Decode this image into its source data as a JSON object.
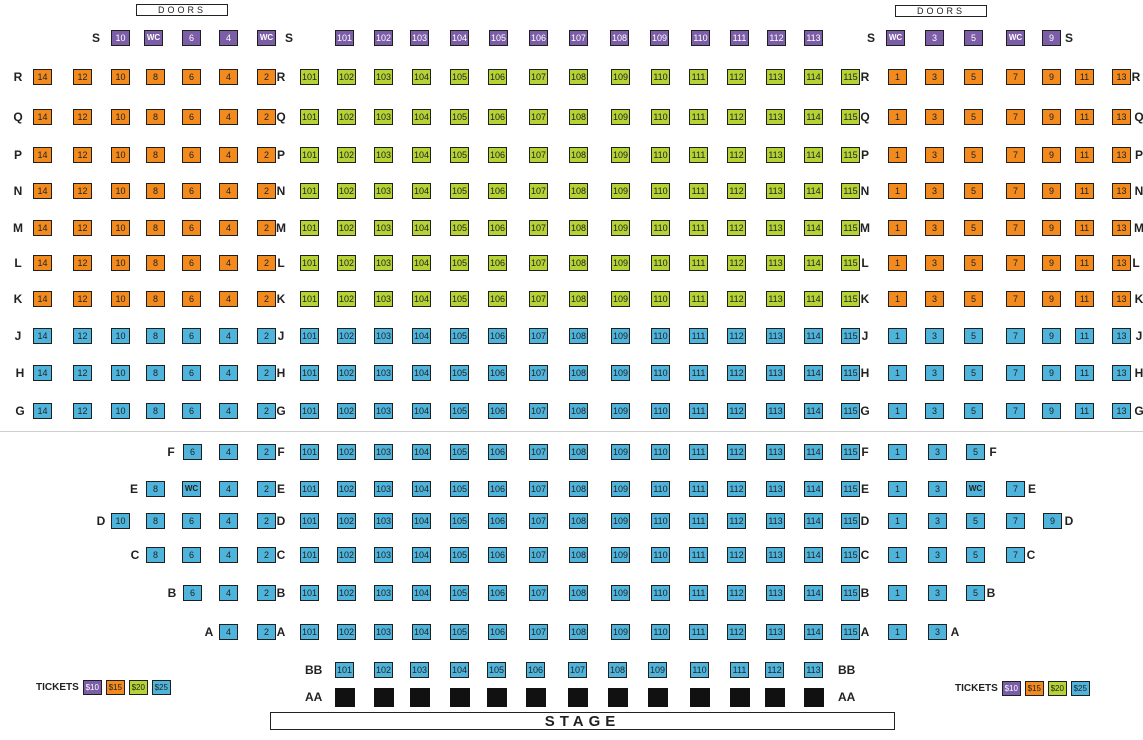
{
  "colors": {
    "p10": "#7b5ea7",
    "p15": "#f28a1e",
    "p20": "#b5d334",
    "p25": "#4fb4dc"
  },
  "doors": {
    "left": "DOORS",
    "right": "DOORS"
  },
  "stage": "STAGE",
  "tickets": {
    "label": "TICKETS",
    "prices": [
      {
        "tier": "p10",
        "label": "$10"
      },
      {
        "tier": "p15",
        "label": "$15"
      },
      {
        "tier": "p20",
        "label": "$20"
      },
      {
        "tier": "p25",
        "label": "$25"
      }
    ]
  },
  "rows": [
    {
      "row": "S",
      "tier": "p10",
      "center_tier": "p10",
      "left": [
        "10",
        "WC",
        "6",
        "4",
        "WC"
      ],
      "center": [
        "101",
        "102",
        "103",
        "104",
        "105",
        "106",
        "107",
        "108",
        "109",
        "110",
        "111",
        "112",
        "113"
      ],
      "right": [
        "WC",
        "3",
        "5",
        "WC",
        "9"
      ],
      "center_label_left": "S",
      "center_label_right": "S"
    },
    {
      "row": "R",
      "tier": "p15",
      "center_tier": "p20",
      "left": [
        "14",
        "12",
        "10",
        "8",
        "6",
        "4",
        "2"
      ],
      "center": [
        "101",
        "102",
        "103",
        "104",
        "105",
        "106",
        "107",
        "108",
        "109",
        "110",
        "111",
        "112",
        "113",
        "114",
        "115"
      ],
      "right": [
        "1",
        "3",
        "5",
        "7",
        "9",
        "11",
        "13"
      ],
      "center_label_left": "R",
      "center_label_right": "R"
    },
    {
      "row": "Q",
      "tier": "p15",
      "center_tier": "p20",
      "left": [
        "14",
        "12",
        "10",
        "8",
        "6",
        "4",
        "2"
      ],
      "center": [
        "101",
        "102",
        "103",
        "104",
        "105",
        "106",
        "107",
        "108",
        "109",
        "110",
        "111",
        "112",
        "113",
        "114",
        "115"
      ],
      "right": [
        "1",
        "3",
        "5",
        "7",
        "9",
        "11",
        "13"
      ],
      "center_label_left": "Q",
      "center_label_right": "Q"
    },
    {
      "row": "P",
      "tier": "p15",
      "center_tier": "p20",
      "left": [
        "14",
        "12",
        "10",
        "8",
        "6",
        "4",
        "2"
      ],
      "center": [
        "101",
        "102",
        "103",
        "104",
        "105",
        "106",
        "107",
        "108",
        "109",
        "110",
        "111",
        "112",
        "113",
        "114",
        "115"
      ],
      "right": [
        "1",
        "3",
        "5",
        "7",
        "9",
        "11",
        "13"
      ],
      "center_label_left": "P",
      "center_label_right": "P"
    },
    {
      "row": "N",
      "tier": "p15",
      "center_tier": "p20",
      "left": [
        "14",
        "12",
        "10",
        "8",
        "6",
        "4",
        "2"
      ],
      "center": [
        "101",
        "102",
        "103",
        "104",
        "105",
        "106",
        "107",
        "108",
        "109",
        "110",
        "111",
        "112",
        "113",
        "114",
        "115"
      ],
      "right": [
        "1",
        "3",
        "5",
        "7",
        "9",
        "11",
        "13"
      ],
      "center_label_left": "N",
      "center_label_right": "N"
    },
    {
      "row": "M",
      "tier": "p15",
      "center_tier": "p20",
      "left": [
        "14",
        "12",
        "10",
        "8",
        "6",
        "4",
        "2"
      ],
      "center": [
        "101",
        "102",
        "103",
        "104",
        "105",
        "106",
        "107",
        "108",
        "109",
        "110",
        "111",
        "112",
        "113",
        "114",
        "115"
      ],
      "right": [
        "1",
        "3",
        "5",
        "7",
        "9",
        "11",
        "13"
      ],
      "center_label_left": "M",
      "center_label_right": "M"
    },
    {
      "row": "L",
      "tier": "p15",
      "center_tier": "p20",
      "left": [
        "14",
        "12",
        "10",
        "8",
        "6",
        "4",
        "2"
      ],
      "center": [
        "101",
        "102",
        "103",
        "104",
        "105",
        "106",
        "107",
        "108",
        "109",
        "110",
        "111",
        "112",
        "113",
        "114",
        "115"
      ],
      "right": [
        "1",
        "3",
        "5",
        "7",
        "9",
        "11",
        "13"
      ],
      "center_label_left": "L",
      "center_label_right": "L"
    },
    {
      "row": "K",
      "tier": "p15",
      "center_tier": "p20",
      "left": [
        "14",
        "12",
        "10",
        "8",
        "6",
        "4",
        "2"
      ],
      "center": [
        "101",
        "102",
        "103",
        "104",
        "105",
        "106",
        "107",
        "108",
        "109",
        "110",
        "111",
        "112",
        "113",
        "114",
        "115"
      ],
      "right": [
        "1",
        "3",
        "5",
        "7",
        "9",
        "11",
        "13"
      ],
      "center_label_left": "K",
      "center_label_right": "K"
    },
    {
      "row": "J",
      "tier": "p25",
      "center_tier": "p25",
      "left": [
        "14",
        "12",
        "10",
        "8",
        "6",
        "4",
        "2"
      ],
      "center": [
        "101",
        "102",
        "103",
        "104",
        "105",
        "106",
        "107",
        "108",
        "109",
        "110",
        "111",
        "112",
        "113",
        "114",
        "115"
      ],
      "right": [
        "1",
        "3",
        "5",
        "7",
        "9",
        "11",
        "13"
      ],
      "center_label_left": "J",
      "center_label_right": "J"
    },
    {
      "row": "H",
      "tier": "p25",
      "center_tier": "p25",
      "left": [
        "14",
        "12",
        "10",
        "8",
        "6",
        "4",
        "2"
      ],
      "center": [
        "101",
        "102",
        "103",
        "104",
        "105",
        "106",
        "107",
        "108",
        "109",
        "110",
        "111",
        "112",
        "113",
        "114",
        "115"
      ],
      "right": [
        "1",
        "3",
        "5",
        "7",
        "9",
        "11",
        "13"
      ],
      "center_label_left": "H",
      "center_label_right": "H"
    },
    {
      "row": "G",
      "tier": "p25",
      "center_tier": "p25",
      "left": [
        "14",
        "12",
        "10",
        "8",
        "6",
        "4",
        "2"
      ],
      "center": [
        "101",
        "102",
        "103",
        "104",
        "105",
        "106",
        "107",
        "108",
        "109",
        "110",
        "111",
        "112",
        "113",
        "114",
        "115"
      ],
      "right": [
        "1",
        "3",
        "5",
        "7",
        "9",
        "11",
        "13"
      ],
      "center_label_left": "G",
      "center_label_right": "G"
    },
    {
      "row": "F",
      "tier": "p25",
      "center_tier": "p25",
      "left": [
        "6",
        "4",
        "2"
      ],
      "center": [
        "101",
        "102",
        "103",
        "104",
        "105",
        "106",
        "107",
        "108",
        "109",
        "110",
        "111",
        "112",
        "113",
        "114",
        "115"
      ],
      "right": [
        "1",
        "3",
        "5"
      ],
      "center_label_left": "F",
      "center_label_right": "F"
    },
    {
      "row": "E",
      "tier": "p25",
      "center_tier": "p25",
      "left": [
        "8",
        "WC",
        "4",
        "2"
      ],
      "center": [
        "101",
        "102",
        "103",
        "104",
        "105",
        "106",
        "107",
        "108",
        "109",
        "110",
        "111",
        "112",
        "113",
        "114",
        "115"
      ],
      "right": [
        "1",
        "3",
        "WC",
        "7"
      ],
      "center_label_left": "E",
      "center_label_right": "E"
    },
    {
      "row": "D",
      "tier": "p25",
      "center_tier": "p25",
      "left": [
        "10",
        "8",
        "6",
        "4",
        "2"
      ],
      "center": [
        "101",
        "102",
        "103",
        "104",
        "105",
        "106",
        "107",
        "108",
        "109",
        "110",
        "111",
        "112",
        "113",
        "114",
        "115"
      ],
      "right": [
        "1",
        "3",
        "5",
        "7",
        "9"
      ],
      "center_label_left": "D",
      "center_label_right": "D"
    },
    {
      "row": "C",
      "tier": "p25",
      "center_tier": "p25",
      "left": [
        "8",
        "6",
        "4",
        "2"
      ],
      "center": [
        "101",
        "102",
        "103",
        "104",
        "105",
        "106",
        "107",
        "108",
        "109",
        "110",
        "111",
        "112",
        "113",
        "114",
        "115"
      ],
      "right": [
        "1",
        "3",
        "5",
        "7"
      ],
      "center_label_left": "C",
      "center_label_right": "C"
    },
    {
      "row": "B",
      "tier": "p25",
      "center_tier": "p25",
      "left": [
        "6",
        "4",
        "2"
      ],
      "center": [
        "101",
        "102",
        "103",
        "104",
        "105",
        "106",
        "107",
        "108",
        "109",
        "110",
        "111",
        "112",
        "113",
        "114",
        "115"
      ],
      "right": [
        "1",
        "3",
        "5"
      ],
      "center_label_left": "B",
      "center_label_right": "B"
    },
    {
      "row": "A",
      "tier": "p25",
      "center_tier": "p25",
      "left": [
        "4",
        "2"
      ],
      "center": [
        "101",
        "102",
        "103",
        "104",
        "105",
        "106",
        "107",
        "108",
        "109",
        "110",
        "111",
        "112",
        "113",
        "114",
        "115"
      ],
      "right": [
        "1",
        "3"
      ],
      "center_label_left": "A",
      "center_label_right": "A"
    },
    {
      "row": "BB",
      "tier": "p25",
      "center_tier": "p25",
      "left": [],
      "center": [
        "101",
        "102",
        "103",
        "104",
        "105",
        "106",
        "107",
        "108",
        "109",
        "110",
        "111",
        "112",
        "113"
      ],
      "right": [],
      "center_label_left": "BB",
      "center_label_right": "BB"
    },
    {
      "row": "AA",
      "tier": "aa",
      "center_tier": "aa",
      "left": [],
      "center": [
        "",
        "",
        "",
        "",
        "",
        "",
        "",
        "",
        "",
        "",
        "",
        "",
        ""
      ],
      "right": [],
      "center_label_left": "AA",
      "center_label_right": "AA"
    }
  ]
}
